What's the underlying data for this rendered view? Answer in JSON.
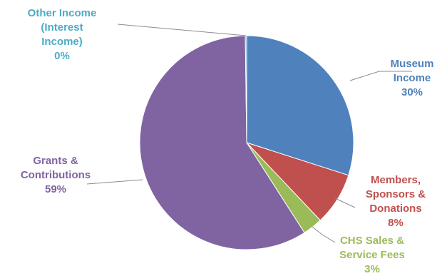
{
  "chart_data": {
    "type": "pie",
    "title": "",
    "slices": [
      {
        "label_lines": [
          "Museum",
          "Income"
        ],
        "pct_label": "30%",
        "value": 30,
        "color": "#4F81BD"
      },
      {
        "label_lines": [
          "Members,",
          "Sponsors &",
          "Donations"
        ],
        "pct_label": "8%",
        "value": 8,
        "color": "#C0504D"
      },
      {
        "label_lines": [
          "CHS Sales &",
          "Service Fees"
        ],
        "pct_label": "3%",
        "value": 3,
        "color": "#9BBB59"
      },
      {
        "label_lines": [
          "Grants &",
          "Contributions"
        ],
        "pct_label": "59%",
        "value": 59,
        "color": "#8064A2"
      },
      {
        "label_lines": [
          "Other Income",
          "(Interest",
          "Income)"
        ],
        "pct_label": "0%",
        "value": 0.2,
        "color": "#4BACC6"
      }
    ],
    "legend": "none",
    "data_labels": "outside with leader lines"
  }
}
